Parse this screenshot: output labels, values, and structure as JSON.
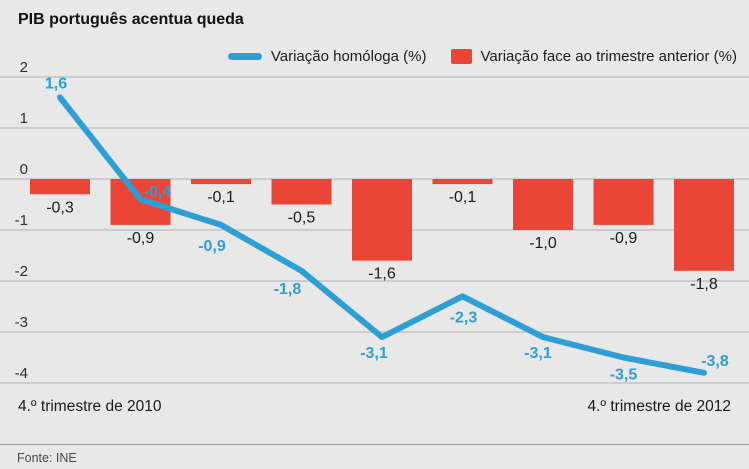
{
  "header": {
    "title": "PIB português acentua queda"
  },
  "legend": {
    "items": [
      {
        "label": "Variação homóloga (%)",
        "swatch": "line",
        "color": "#2D9FD5"
      },
      {
        "label": "Variação face ao trimestre anterior (%)",
        "swatch": "square",
        "color": "#EA4537"
      }
    ]
  },
  "x_axis": {
    "start_label": "4.º trimestre de 2010",
    "end_label": "4.º trimestre de 2012"
  },
  "footer": {
    "source": "Fonte: INE"
  },
  "colors": {
    "background": "#E8E8E8",
    "gridline": "#C4C4C4",
    "line_series": "#2D9FD5",
    "bar_series": "#EA4537",
    "bar_label": "#1A1A1A",
    "axis_label": "#2E2E2E"
  },
  "chart_data": {
    "type": "combo (line + bar)",
    "title": "PIB português acentua queda",
    "n_points": 9,
    "x_first_label": "4.º trimestre de 2010",
    "x_last_label": "4.º trimestre de 2012",
    "decimal_separator": ",",
    "y_ticks": [
      2,
      1,
      0,
      -1,
      -2,
      -3,
      -4
    ],
    "ylim": [
      -4.5,
      2.3
    ],
    "grid": true,
    "legend_position": "top",
    "series": [
      {
        "name": "Variação homóloga (%)",
        "type": "line",
        "color": "#2D9FD5",
        "values": [
          1.6,
          -0.4,
          -0.9,
          -1.8,
          -3.1,
          -2.3,
          -3.1,
          -3.5,
          -3.8
        ]
      },
      {
        "name": "Variação face ao trimestre anterior (%)",
        "type": "bar",
        "color": "#EA4537",
        "values": [
          -0.3,
          -0.9,
          -0.1,
          -0.5,
          -1.6,
          -0.1,
          -1.0,
          -0.9,
          -1.8
        ]
      }
    ],
    "source": "Fonte: INE"
  }
}
